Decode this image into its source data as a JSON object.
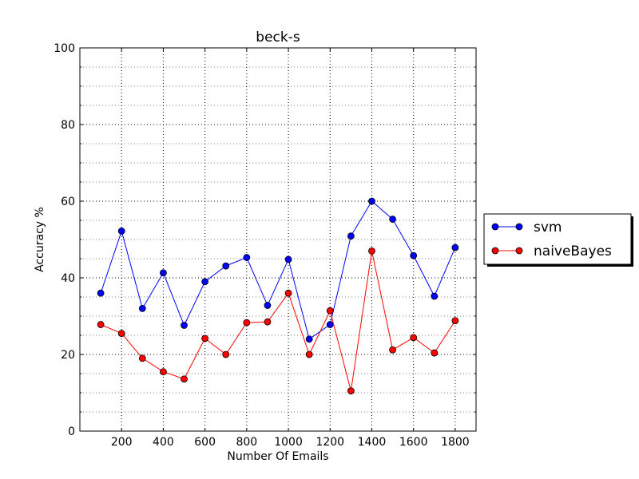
{
  "chart_data": {
    "type": "line",
    "title": "beck-s",
    "xlabel": "Number Of Emails",
    "ylabel": "Accuracy %",
    "xlim": [
      0,
      1900
    ],
    "ylim": [
      0,
      100
    ],
    "xticks": [
      200,
      400,
      600,
      800,
      1000,
      1200,
      1400,
      1600,
      1800
    ],
    "yticks": [
      0,
      20,
      40,
      60,
      80,
      100
    ],
    "grid": true,
    "legend_position": "right",
    "x": [
      100,
      200,
      300,
      400,
      500,
      600,
      700,
      800,
      900,
      1000,
      1100,
      1200,
      1300,
      1400,
      1500,
      1600,
      1700,
      1800
    ],
    "series": [
      {
        "name": "svm",
        "color": "#0000ff",
        "values": [
          36.0,
          52.2,
          32.0,
          41.3,
          27.6,
          39.0,
          43.1,
          45.3,
          32.8,
          44.8,
          24.0,
          27.8,
          50.9,
          60.0,
          55.3,
          45.8,
          35.2,
          47.9
        ]
      },
      {
        "name": "naiveBayes",
        "color": "#ff0000",
        "values": [
          27.8,
          25.5,
          19.0,
          15.5,
          13.6,
          24.2,
          20.0,
          28.3,
          28.5,
          36.0,
          20.0,
          31.4,
          10.5,
          47.0,
          21.2,
          24.4,
          20.4,
          28.8
        ]
      }
    ]
  }
}
